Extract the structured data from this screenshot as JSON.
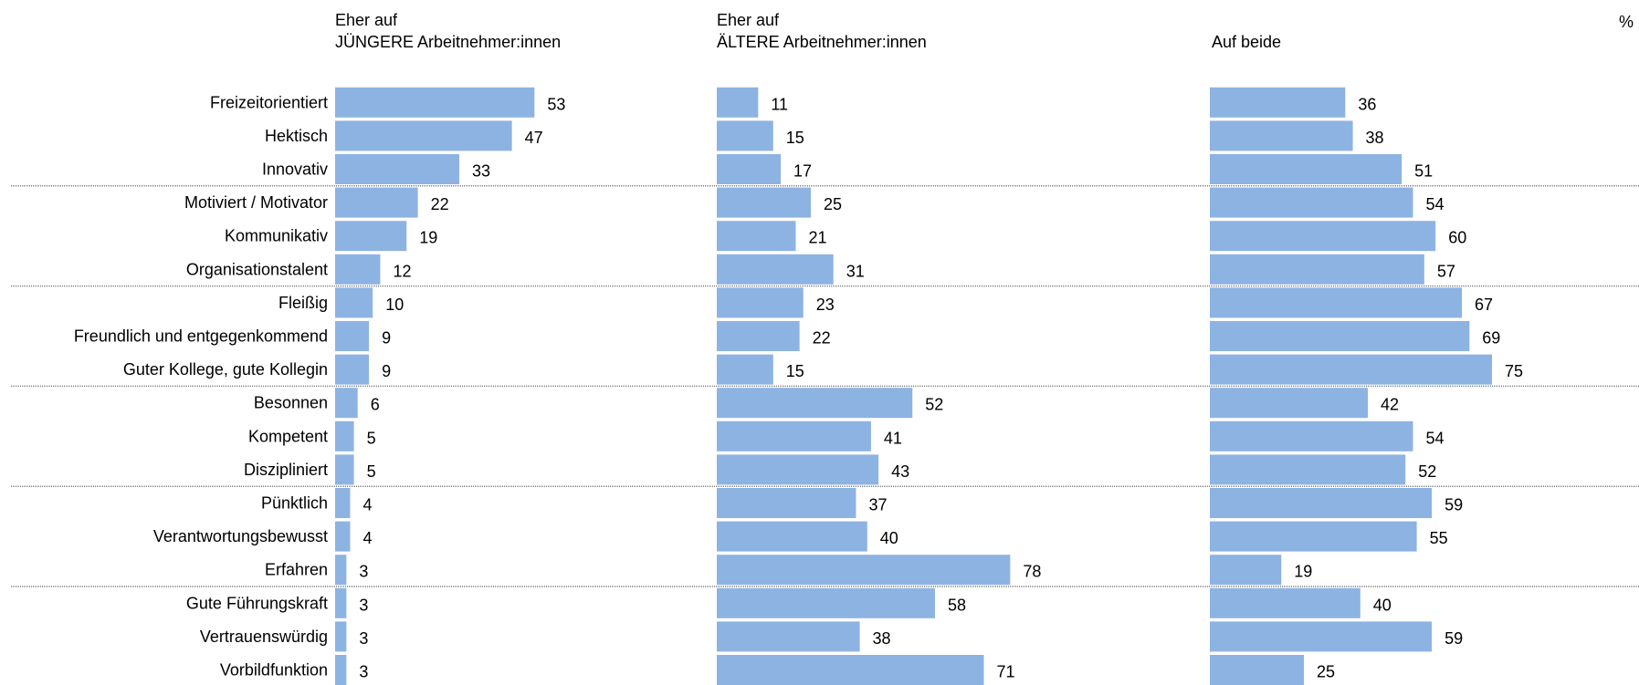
{
  "chart_data": {
    "type": "bar",
    "unit_label": "%",
    "panels": [
      {
        "title_line1": "Eher auf",
        "title_line2": "JÜNGERE Arbeitnehmer:innen"
      },
      {
        "title_line1": "Eher auf",
        "title_line2": "ÄLTERE Arbeitnehmer:innen"
      },
      {
        "title_line1": "",
        "title_line2": "Auf beide"
      }
    ],
    "categories": [
      "Freizeitorientiert",
      "Hektisch",
      "Innovativ",
      "Motiviert / Motivator",
      "Kommunikativ",
      "Organisationstalent",
      "Fleißig",
      "Freundlich und entgegenkommend",
      "Guter Kollege, gute Kollegin",
      "Besonnen",
      "Kompetent",
      "Diszipliniert",
      "Pünktlich",
      "Verantwortungsbewusst",
      "Erfahren",
      "Gute Führungskraft",
      "Vertrauenswürdig",
      "Vorbildfunktion"
    ],
    "series": [
      {
        "values": [
          53,
          47,
          33,
          22,
          19,
          12,
          10,
          9,
          9,
          6,
          5,
          5,
          4,
          4,
          3,
          3,
          3,
          3
        ]
      },
      {
        "values": [
          11,
          15,
          17,
          25,
          21,
          31,
          23,
          22,
          15,
          52,
          41,
          43,
          37,
          40,
          78,
          58,
          38,
          71
        ]
      },
      {
        "values": [
          36,
          38,
          51,
          54,
          60,
          57,
          67,
          69,
          75,
          42,
          54,
          52,
          59,
          55,
          19,
          40,
          59,
          25
        ]
      }
    ],
    "group_size": 3,
    "bar_color": "#8DB3E2",
    "separator_color": "#7f7f7f"
  }
}
